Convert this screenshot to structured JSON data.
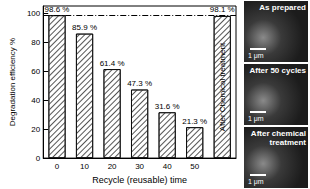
{
  "chart_data": {
    "type": "bar",
    "categories": [
      "0",
      "10",
      "20",
      "30",
      "40",
      "50",
      null
    ],
    "values": [
      98.6,
      85.9,
      61.4,
      47.3,
      31.6,
      21.3,
      98.1
    ],
    "value_labels": [
      "98.6 %",
      "85.9 %",
      "61.4 %",
      "47.3 %",
      "31.6 %",
      "21.3 %",
      "98.1 %"
    ],
    "data_labels": true,
    "color": "#ffffff",
    "x_label": "Recycle (reusable) time",
    "y_label": "Degradation efficiency %",
    "ylim": [
      0,
      105
    ],
    "yticks": [
      0,
      20,
      40,
      60,
      80,
      100
    ],
    "grid": false,
    "reference_line": 98.6,
    "annotations": [
      {
        "text": "After Chemical treatment",
        "bar": 6
      }
    ]
  },
  "images": [
    {
      "label": "As prepared",
      "scale_bar": "1 μm"
    },
    {
      "label": "After 50 cycles",
      "scale_bar": "1 μm"
    },
    {
      "label": "After chemical treatment",
      "scale_bar": "1 μm"
    }
  ]
}
